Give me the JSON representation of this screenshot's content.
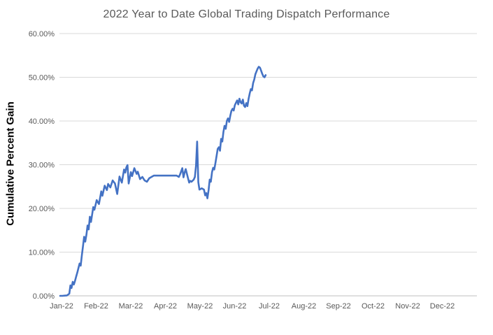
{
  "title": "2022 Year to Date Global Trading Dispatch Performance",
  "chart_data": {
    "type": "line",
    "title": "2022 Year to Date Global Trading Dispatch Performance",
    "xlabel": "",
    "ylabel": "Cumulative Percent Gain",
    "x_unit": "day-of-year-2022",
    "xlim": [
      1,
      366
    ],
    "ylim": [
      0,
      60
    ],
    "grid": "horizontal-only",
    "legend": "none",
    "x_tick_labels": [
      "Jan-22",
      "Feb-22",
      "Mar-22",
      "Apr-22",
      "May-22",
      "Jun-22",
      "Jul-22",
      "Aug-22",
      "Sep-22",
      "Oct-22",
      "Nov-22",
      "Dec-22"
    ],
    "y_tick_labels": [
      "0.00%",
      "10.00%",
      "20.00%",
      "30.00%",
      "40.00%",
      "50.00%",
      "60.00%"
    ],
    "colors": {
      "line": "#4472C4",
      "gridline": "#D9D9D9",
      "axis_line": "#BFBFBF",
      "tick_text": "#595959",
      "title_text": "#595959",
      "axis_title_text": "#000000",
      "background": "#FFFFFF"
    },
    "series": [
      {
        "name": "Cumulative Percent Gain",
        "points": [
          [
            1,
            0
          ],
          [
            3,
            0
          ],
          [
            5,
            0.05
          ],
          [
            7,
            0.1
          ],
          [
            9,
            0.5
          ],
          [
            10,
            2.4
          ],
          [
            11,
            1.8
          ],
          [
            12,
            3.2
          ],
          [
            13,
            2.6
          ],
          [
            14,
            3.4
          ],
          [
            15,
            4.4
          ],
          [
            16,
            5.3
          ],
          [
            17,
            6.3
          ],
          [
            18,
            7.4
          ],
          [
            19,
            6.9
          ],
          [
            20,
            9.2
          ],
          [
            21,
            11.4
          ],
          [
            22,
            13.5
          ],
          [
            23,
            12.4
          ],
          [
            24,
            14.0
          ],
          [
            25,
            16.1
          ],
          [
            26,
            15.2
          ],
          [
            27,
            18.1
          ],
          [
            28,
            16.9
          ],
          [
            30,
            20.3
          ],
          [
            31,
            19.7
          ],
          [
            33,
            21.9
          ],
          [
            35,
            21.0
          ],
          [
            37,
            23.9
          ],
          [
            38,
            22.9
          ],
          [
            40,
            25.2
          ],
          [
            42,
            24.2
          ],
          [
            43,
            25.6
          ],
          [
            45,
            24.8
          ],
          [
            47,
            26.4
          ],
          [
            49,
            25.7
          ],
          [
            51,
            23.3
          ],
          [
            53,
            27.3
          ],
          [
            55,
            25.9
          ],
          [
            57,
            28.9
          ],
          [
            58,
            28.2
          ],
          [
            59,
            29.4
          ],
          [
            60,
            29.9
          ],
          [
            61,
            25.7
          ],
          [
            63,
            28.3
          ],
          [
            64,
            27.4
          ],
          [
            66,
            29.2
          ],
          [
            68,
            27.9
          ],
          [
            69,
            28.4
          ],
          [
            71,
            26.7
          ],
          [
            73,
            27.2
          ],
          [
            75,
            26.4
          ],
          [
            77,
            26.1
          ],
          [
            79,
            26.9
          ],
          [
            81,
            27.2
          ],
          [
            83,
            27.5
          ],
          [
            86,
            27.5
          ],
          [
            89,
            27.5
          ],
          [
            92,
            27.5
          ],
          [
            96,
            27.5
          ],
          [
            100,
            27.5
          ],
          [
            103,
            27.5
          ],
          [
            105,
            27.2
          ],
          [
            106,
            27.8
          ],
          [
            108,
            29.2
          ],
          [
            109,
            27.1
          ],
          [
            110,
            28.2
          ],
          [
            111,
            29.0
          ],
          [
            113,
            26.9
          ],
          [
            114,
            25.9
          ],
          [
            115,
            26.3
          ],
          [
            116,
            26.1
          ],
          [
            118,
            26.6
          ],
          [
            119,
            27.2
          ],
          [
            120,
            29.8
          ],
          [
            121,
            35.3
          ],
          [
            122,
            26.0
          ],
          [
            123,
            24.3
          ],
          [
            125,
            24.6
          ],
          [
            127,
            24.3
          ],
          [
            128,
            23.0
          ],
          [
            129,
            23.5
          ],
          [
            130,
            22.3
          ],
          [
            131,
            24.2
          ],
          [
            132,
            26.6
          ],
          [
            133,
            26.1
          ],
          [
            134,
            28.3
          ],
          [
            135,
            29.3
          ],
          [
            136,
            28.9
          ],
          [
            137,
            30.4
          ],
          [
            138,
            32.0
          ],
          [
            139,
            33.6
          ],
          [
            140,
            34.0
          ],
          [
            141,
            33.2
          ],
          [
            142,
            35.9
          ],
          [
            143,
            35.3
          ],
          [
            144,
            37.5
          ],
          [
            145,
            38.9
          ],
          [
            146,
            38.2
          ],
          [
            147,
            40.0
          ],
          [
            148,
            40.6
          ],
          [
            149,
            39.8
          ],
          [
            150,
            41.2
          ],
          [
            151,
            42.3
          ],
          [
            152,
            42.8
          ],
          [
            153,
            42.4
          ],
          [
            154,
            43.6
          ],
          [
            155,
            44.2
          ],
          [
            156,
            44.7
          ],
          [
            157,
            43.8
          ],
          [
            158,
            45.1
          ],
          [
            159,
            44.3
          ],
          [
            160,
            44.0
          ],
          [
            161,
            44.9
          ],
          [
            162,
            43.5
          ],
          [
            163,
            43.2
          ],
          [
            164,
            44.1
          ],
          [
            165,
            43.4
          ],
          [
            166,
            45.0
          ],
          [
            167,
            46.3
          ],
          [
            168,
            47.3
          ],
          [
            169,
            47.0
          ],
          [
            170,
            48.7
          ],
          [
            171,
            49.5
          ],
          [
            172,
            50.7
          ],
          [
            173,
            51.4
          ],
          [
            174,
            52.0
          ],
          [
            175,
            52.4
          ],
          [
            176,
            52.2
          ],
          [
            177,
            51.5
          ],
          [
            178,
            50.8
          ],
          [
            179,
            50.2
          ],
          [
            180,
            50.0
          ],
          [
            181,
            50.5
          ]
        ]
      }
    ]
  }
}
